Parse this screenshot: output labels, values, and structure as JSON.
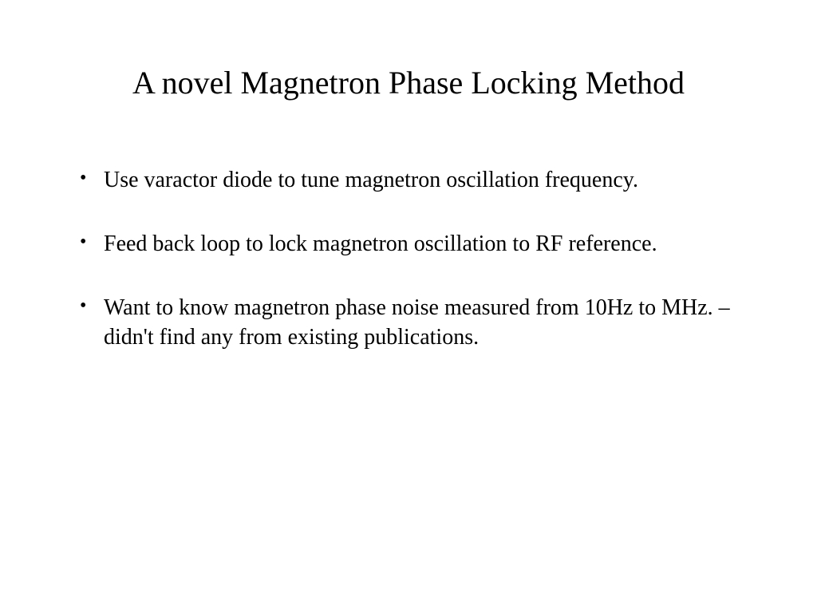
{
  "slide": {
    "title": "A novel Magnetron Phase Locking Method",
    "bullets": [
      "Use varactor diode to tune magnetron oscillation frequency.",
      "Feed back loop to lock magnetron oscillation to RF reference.",
      "Want to know magnetron phase noise measured from 10Hz to MHz. – didn't find any from existing publications."
    ],
    "background_color": "#ffffff",
    "text_color": "#000000",
    "title_fontsize": 40,
    "body_fontsize": 28,
    "font_family": "Times New Roman"
  }
}
